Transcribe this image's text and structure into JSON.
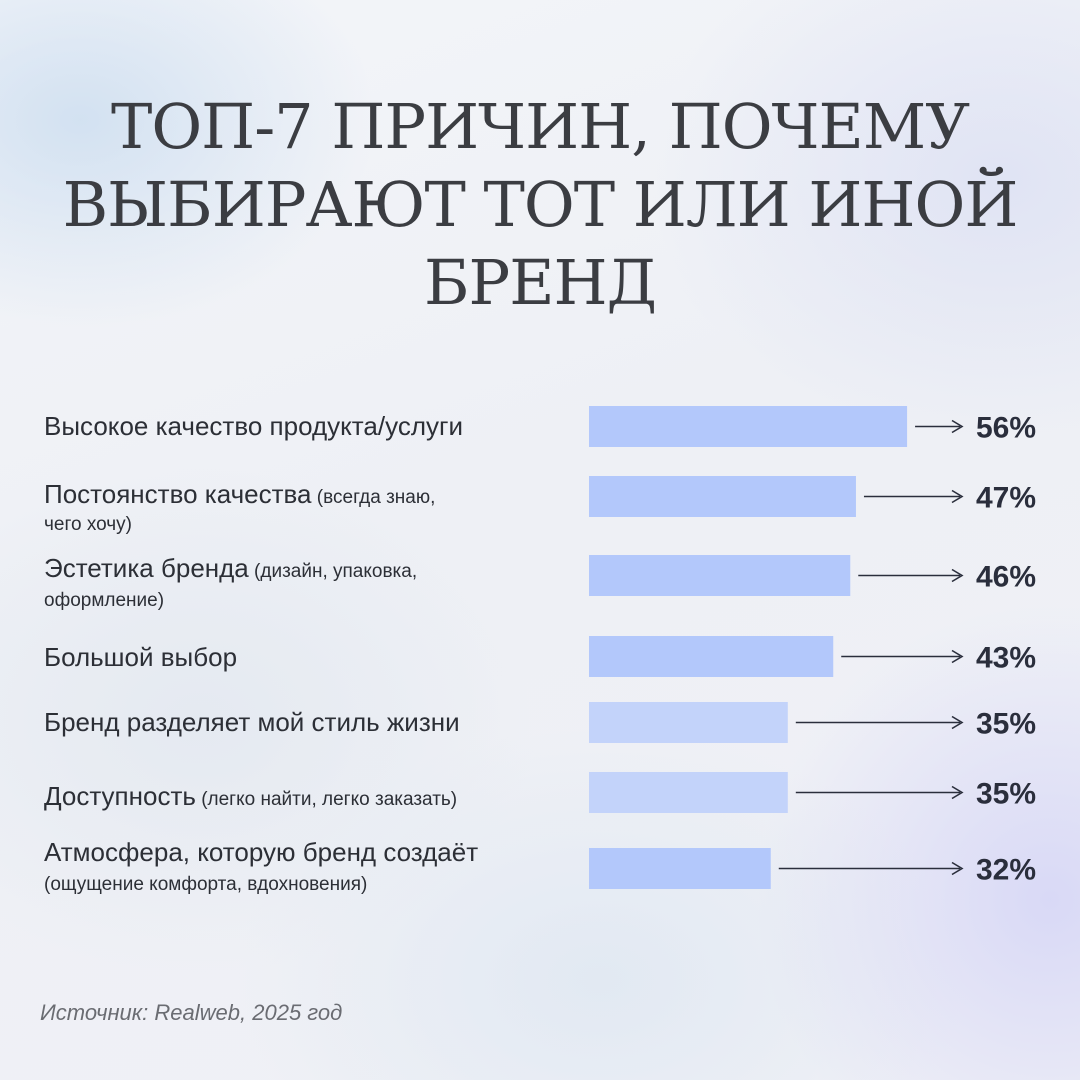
{
  "chart_data": {
    "type": "bar",
    "orientation": "horizontal",
    "title": "ТОП-7 ПРИЧИН, ПОЧЕМУ ВЫБИРАЮТ ТОТ ИЛИ ИНОЙ БРЕНД",
    "title_lines": [
      "ТОП-7 ПРИЧИН, ПОЧЕМУ",
      "ВЫБИРАЮТ ТОТ ИЛИ ИНОЙ",
      "БРЕНД"
    ],
    "categories": [
      {
        "label": "Высокое качество продукта/услуги",
        "note": "",
        "value": 56,
        "value_label": "56%"
      },
      {
        "label": "Постоянство качества",
        "note": "(всегда знаю, чего хочу)",
        "value": 47,
        "value_label": "47%"
      },
      {
        "label": "Эстетика бренда",
        "note": "(дизайн, упаковка, оформление)",
        "value": 46,
        "value_label": "46%"
      },
      {
        "label": "Большой выбор",
        "note": "",
        "value": 43,
        "value_label": "43%"
      },
      {
        "label": "Бренд разделяет мой стиль жизни",
        "note": "",
        "value": 35,
        "value_label": "35%"
      },
      {
        "label": "Доступность",
        "note": "(легко найти, легко заказать)",
        "value": 35,
        "value_label": "35%"
      },
      {
        "label": "Атмосфера, которую бренд создаёт",
        "note": "(ощущение комфорта, вдохновения)",
        "value": 32,
        "value_label": "32%"
      }
    ],
    "xlim": [
      0,
      100
    ],
    "grid": false,
    "legend": "none",
    "colors": {
      "bar": "#b3c8fb",
      "bar_light": "#c3d3fa",
      "text": "#2c2f36",
      "value": "#2a2e3c",
      "arrow": "#2a2e3c"
    }
  },
  "source": "Источник: Realweb, 2025 год"
}
